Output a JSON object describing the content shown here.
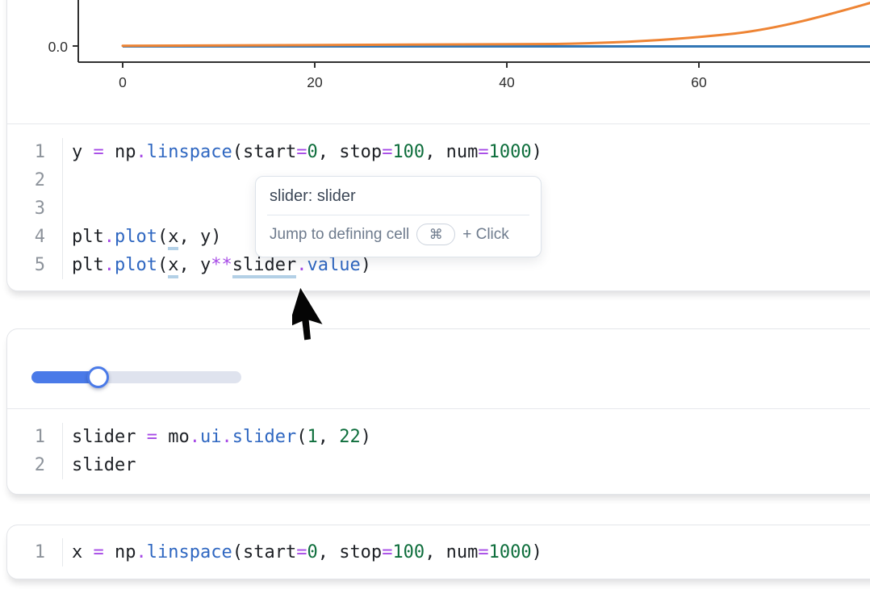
{
  "app": "marimo-notebook",
  "theme": {
    "accent_blue": "#4a7ae8",
    "code_default": "#1d2025",
    "code_operator": "#a64ae6",
    "code_function": "#2f67c1",
    "code_number": "#0e6e3c",
    "variable_underline": "#b3d0e6",
    "line_number_color": "#8d939b",
    "cell_border": "#e3e5e9"
  },
  "chart_data": {
    "type": "line",
    "xlabel": "",
    "ylabel": "",
    "xticks": [
      "0",
      "20",
      "40",
      "60"
    ],
    "ytick": "0.0",
    "series": [
      {
        "name": "y",
        "color": "#3176b5",
        "shape": "flat line at 0"
      },
      {
        "name": "y**slider.value",
        "color": "#ee8434",
        "shape": "exponential curve rising after x≈45"
      }
    ],
    "spine_color": "#303030"
  },
  "cells": [
    {
      "code": {
        "lines": [
          {
            "num": "1",
            "tokens": [
              {
                "t": "y ",
                "c": "d"
              },
              {
                "t": "=",
                "c": "o"
              },
              {
                "t": " np",
                "c": "d"
              },
              {
                "t": ".",
                "c": "o"
              },
              {
                "t": "linspace",
                "c": "f"
              },
              {
                "t": "(start",
                "c": "d"
              },
              {
                "t": "=",
                "c": "o"
              },
              {
                "t": "0",
                "c": "n"
              },
              {
                "t": ", stop",
                "c": "d"
              },
              {
                "t": "=",
                "c": "o"
              },
              {
                "t": "100",
                "c": "n"
              },
              {
                "t": ", num",
                "c": "d"
              },
              {
                "t": "=",
                "c": "o"
              },
              {
                "t": "1000",
                "c": "n"
              },
              {
                "t": ")",
                "c": "d"
              }
            ]
          },
          {
            "num": "2",
            "tokens": []
          },
          {
            "num": "3",
            "tokens": []
          },
          {
            "num": "4",
            "tokens": [
              {
                "t": "plt",
                "c": "d"
              },
              {
                "t": ".",
                "c": "o"
              },
              {
                "t": "plot",
                "c": "f"
              },
              {
                "t": "(",
                "c": "d"
              },
              {
                "t": "x",
                "c": "d u"
              },
              {
                "t": ", y)",
                "c": "d"
              }
            ]
          },
          {
            "num": "5",
            "tokens": [
              {
                "t": "plt",
                "c": "d"
              },
              {
                "t": ".",
                "c": "o"
              },
              {
                "t": "plot",
                "c": "f"
              },
              {
                "t": "(",
                "c": "d"
              },
              {
                "t": "x",
                "c": "d u"
              },
              {
                "t": ", y",
                "c": "d"
              },
              {
                "t": "**",
                "c": "o"
              },
              {
                "t": "slider",
                "c": "d u"
              },
              {
                "t": ".",
                "c": "o"
              },
              {
                "t": "value",
                "c": "f"
              },
              {
                "t": ")",
                "c": "d"
              }
            ]
          }
        ]
      }
    },
    {
      "slider": {
        "percent": 31.5,
        "fill_color": "#4a7ae8",
        "track_color": "#dfe3ee"
      },
      "code": {
        "lines": [
          {
            "num": "1",
            "tokens": [
              {
                "t": "slider ",
                "c": "d"
              },
              {
                "t": "=",
                "c": "o"
              },
              {
                "t": " mo",
                "c": "d"
              },
              {
                "t": ".",
                "c": "o"
              },
              {
                "t": "ui",
                "c": "f"
              },
              {
                "t": ".",
                "c": "o"
              },
              {
                "t": "slider",
                "c": "f"
              },
              {
                "t": "(",
                "c": "d"
              },
              {
                "t": "1",
                "c": "n"
              },
              {
                "t": ", ",
                "c": "d"
              },
              {
                "t": "22",
                "c": "n"
              },
              {
                "t": ")",
                "c": "d"
              }
            ]
          },
          {
            "num": "2",
            "tokens": [
              {
                "t": "slider",
                "c": "d"
              }
            ]
          }
        ]
      }
    },
    {
      "code": {
        "lines": [
          {
            "num": "1",
            "tokens": [
              {
                "t": "x ",
                "c": "d"
              },
              {
                "t": "=",
                "c": "o"
              },
              {
                "t": " np",
                "c": "d"
              },
              {
                "t": ".",
                "c": "o"
              },
              {
                "t": "linspace",
                "c": "f"
              },
              {
                "t": "(start",
                "c": "d"
              },
              {
                "t": "=",
                "c": "o"
              },
              {
                "t": "0",
                "c": "n"
              },
              {
                "t": ", stop",
                "c": "d"
              },
              {
                "t": "=",
                "c": "o"
              },
              {
                "t": "100",
                "c": "n"
              },
              {
                "t": ", num",
                "c": "d"
              },
              {
                "t": "=",
                "c": "o"
              },
              {
                "t": "1000",
                "c": "n"
              },
              {
                "t": ")",
                "c": "d"
              }
            ]
          }
        ]
      }
    }
  ],
  "tooltip": {
    "title": "slider: slider",
    "action": "Jump to defining cell",
    "key": "⌘",
    "suffix": "+ Click"
  }
}
